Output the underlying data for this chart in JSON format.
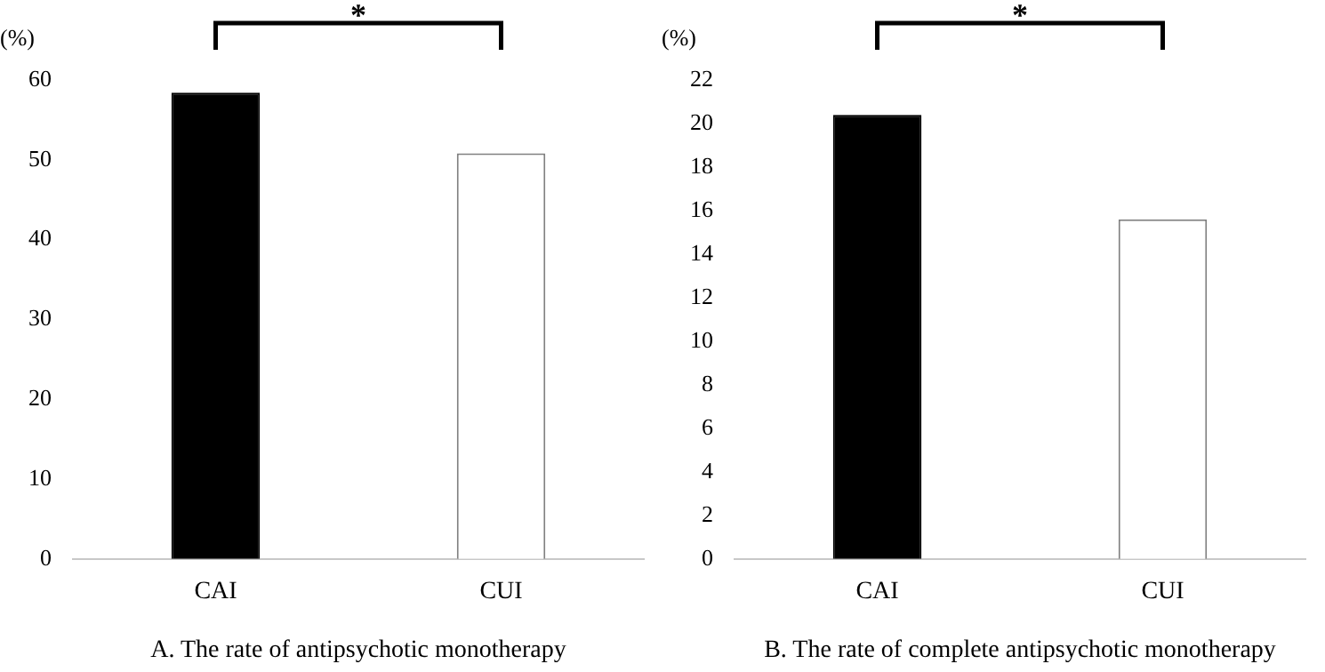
{
  "chart_data": [
    {
      "type": "bar",
      "categories": [
        "CAI",
        "CUI"
      ],
      "values": [
        58.4,
        50.8
      ],
      "colors": [
        "#000000",
        "#ffffff"
      ],
      "ylim": [
        0,
        60
      ],
      "yticks": [
        0,
        10,
        20,
        30,
        40,
        50,
        60
      ],
      "ylabel": "(%)",
      "xlabel": "A. The rate of antipsychotic monotherapy",
      "annotations": [
        "*"
      ],
      "grid": false,
      "legend": false
    },
    {
      "type": "bar",
      "categories": [
        "CAI",
        "CUI"
      ],
      "values": [
        20.4,
        15.6
      ],
      "colors": [
        "#000000",
        "#ffffff"
      ],
      "ylim": [
        0,
        22
      ],
      "yticks": [
        0,
        2,
        4,
        6,
        8,
        10,
        12,
        14,
        16,
        18,
        20,
        22
      ],
      "ylabel": "(%)",
      "xlabel": "B. The rate of complete antipsychotic monotherapy",
      "annotations": [
        "*"
      ],
      "grid": false,
      "legend": false
    }
  ]
}
